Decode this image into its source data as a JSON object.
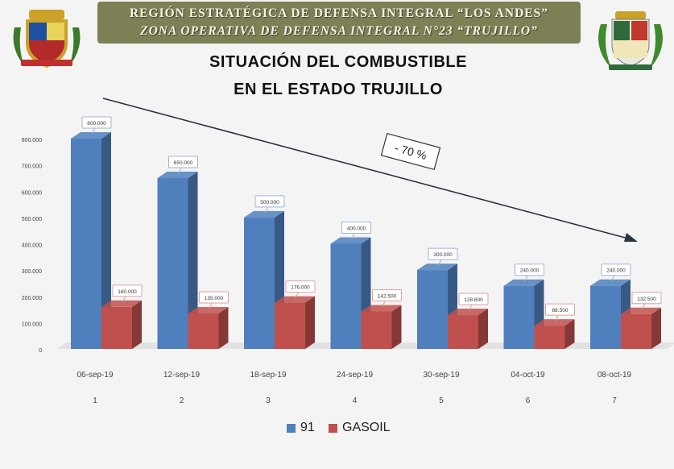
{
  "header": {
    "line1": "REGIÓN ESTRATÉGICA DE DEFENSA INTEGRAL “LOS ANDES”",
    "line2": "ZONA OPERATIVA DE DEFENSA INTEGRAL N°23 “TRUJILLO”"
  },
  "title": {
    "line1": "SITUACIÓN DEL COMBUSTIBLE",
    "line2": "EN EL ESTADO TRUJILLO"
  },
  "colors": {
    "banner": "#7d8055",
    "series_91": "#4f7fbd",
    "series_gasoil": "#c0504d"
  },
  "icons": [
    "left-coat-of-arms",
    "right-coat-of-arms"
  ],
  "chart_data": {
    "type": "bar",
    "categories": [
      "06-sep-19",
      "12-sep-19",
      "18-sep-19",
      "24-sep-19",
      "30-sep-19",
      "04-oct-19",
      "08-oct-19"
    ],
    "category_numbers": [
      "1",
      "2",
      "3",
      "4",
      "5",
      "6",
      "7"
    ],
    "series": [
      {
        "name": "91",
        "values": [
          800000,
          650000,
          500000,
          400000,
          300000,
          240000,
          240000
        ],
        "labels": [
          "800.000",
          "650.000",
          "500.000",
          "400.000",
          "300.000",
          "240.000",
          "240.000"
        ]
      },
      {
        "name": "GASOIL",
        "values": [
          160000,
          135000,
          176000,
          142500,
          128600,
          88500,
          132500
        ],
        "labels": [
          "160.000",
          "135.000",
          "176.000",
          "142.500",
          "128.600",
          "88.500",
          "132.500"
        ]
      }
    ],
    "yticks": [
      "0",
      "100.000",
      "200.000",
      "300.000",
      "400.000",
      "500.000",
      "600.000",
      "700.000",
      "800.000"
    ],
    "ylim": [
      0,
      800000
    ],
    "annotation": "- 70 %",
    "legend_position": "bottom",
    "grid": false
  }
}
